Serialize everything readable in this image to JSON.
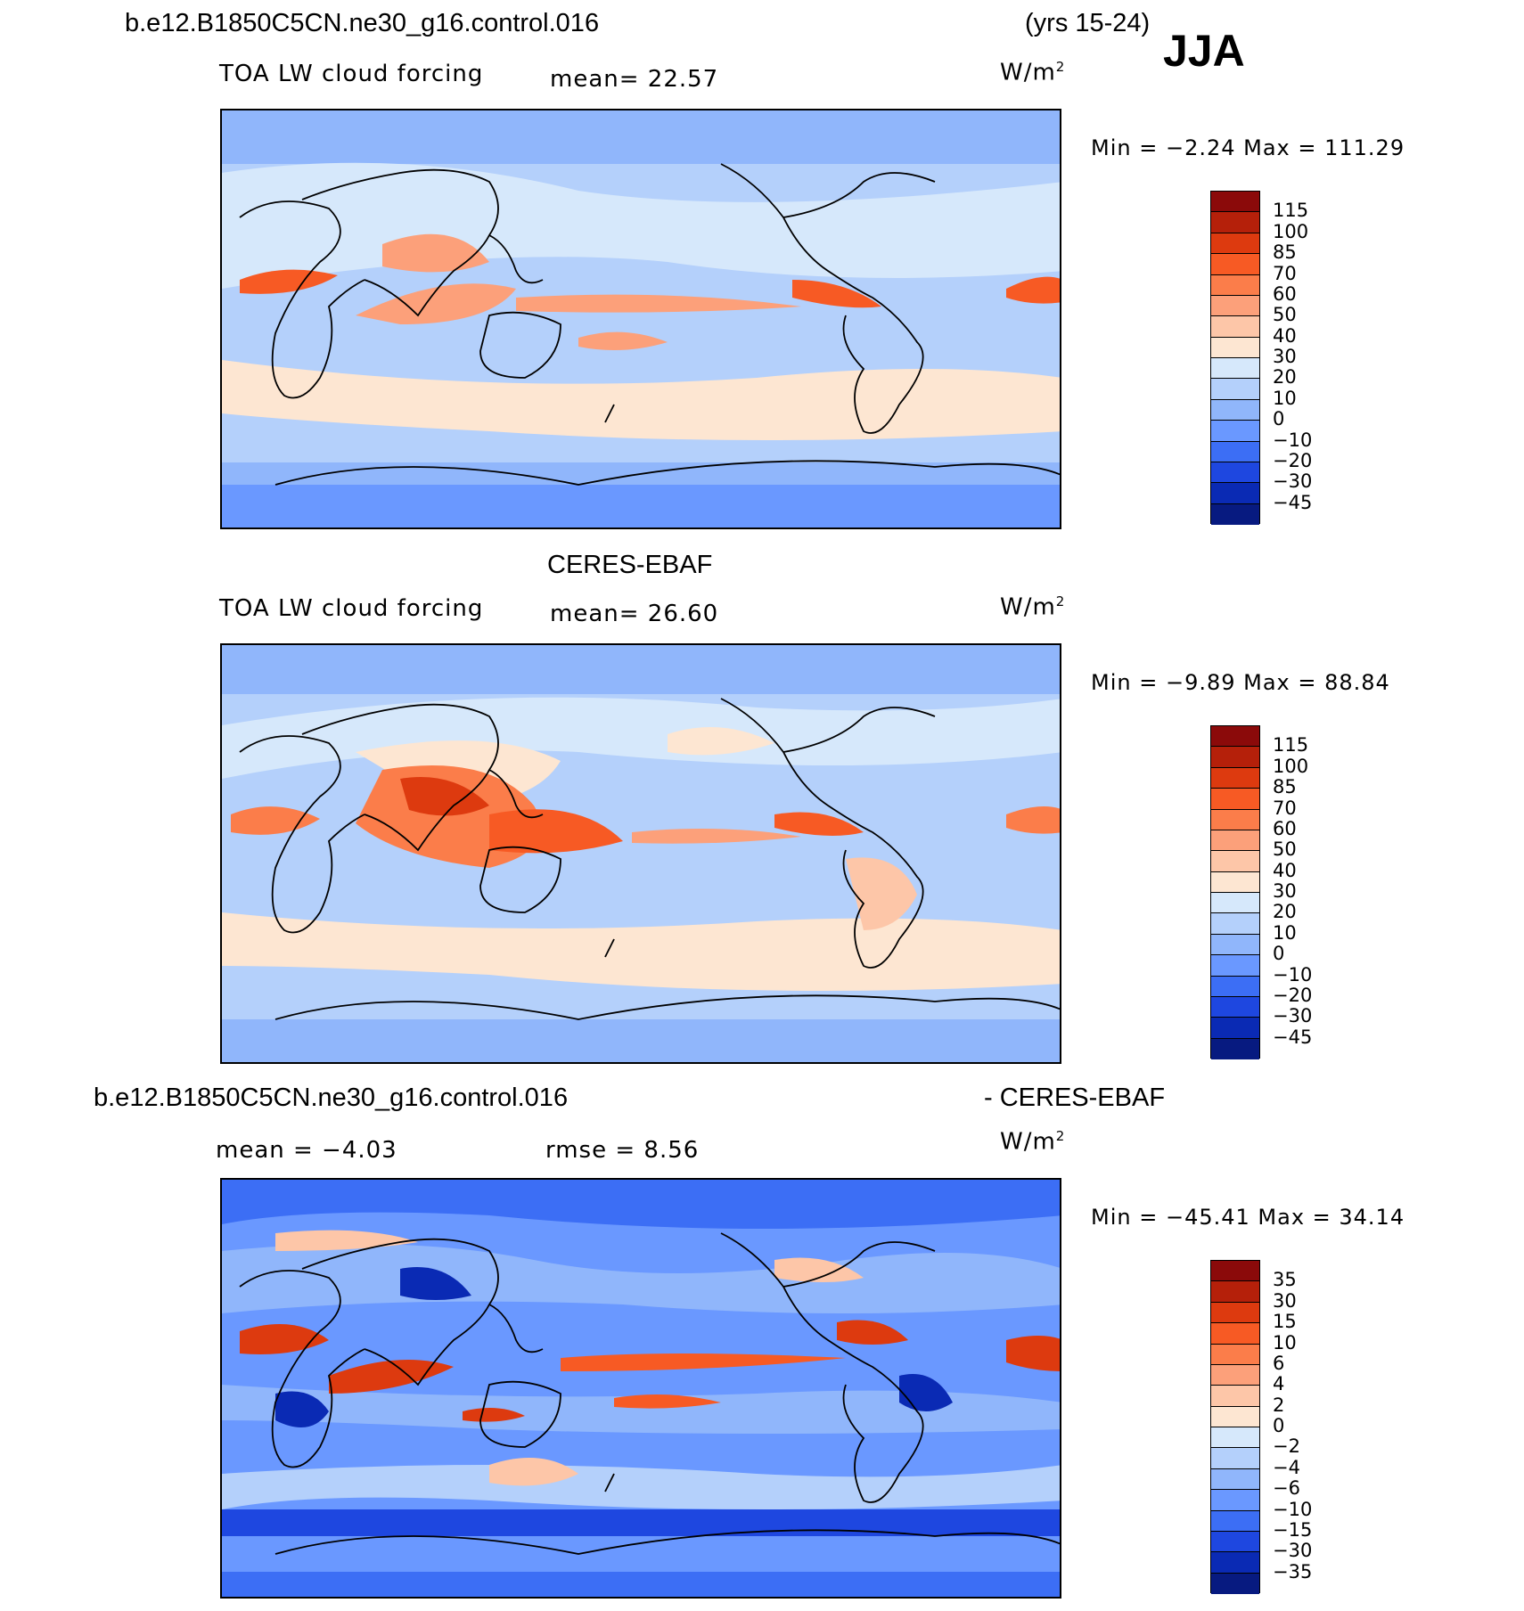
{
  "header": {
    "case_name": "b.e12.B1850C5CN.ne30_g16.control.016",
    "years": "(yrs 15-24)",
    "season": "JJA"
  },
  "panels": [
    {
      "title": "",
      "field": "TOA LW cloud forcing",
      "stat_text": "mean=  22.57",
      "units": "W/m",
      "minmax": "Min =  −2.24 Max = 111.29",
      "colorbar_labels": [
        "115",
        "100",
        "85",
        "70",
        "60",
        "50",
        "40",
        "30",
        "20",
        "10",
        "0",
        "−10",
        "−20",
        "−30",
        "−45"
      ]
    },
    {
      "title": "CERES-EBAF",
      "field": "TOA LW cloud forcing",
      "stat_text": "mean=  26.60",
      "units": "W/m",
      "minmax": "Min =  −9.89 Max =  88.84",
      "colorbar_labels": [
        "115",
        "100",
        "85",
        "70",
        "60",
        "50",
        "40",
        "30",
        "20",
        "10",
        "0",
        "−10",
        "−20",
        "−30",
        "−45"
      ]
    },
    {
      "title_left": "b.e12.B1850C5CN.ne30_g16.control.016",
      "title_right": "- CERES-EBAF",
      "stat_text": "mean =  −4.03",
      "stat_text2": "rmse =   8.56",
      "units": "W/m",
      "minmax": "Min = −45.41 Max =  34.14",
      "colorbar_labels": [
        "35",
        "30",
        "15",
        "10",
        "6",
        "4",
        "2",
        "0",
        "−2",
        "−4",
        "−6",
        "−10",
        "−15",
        "−30",
        "−35"
      ]
    }
  ],
  "colors": {
    "abs_scale": [
      "#8b0a0a",
      "#b5200a",
      "#dd3a0f",
      "#f75a24",
      "#fb7d4a",
      "#fca07a",
      "#fdc6a8",
      "#fde6d2",
      "#d6e8fb",
      "#b4d0fb",
      "#90b6fb",
      "#6a98ff",
      "#3c6ef5",
      "#1e47e0",
      "#0a2ab4",
      "#071a80"
    ],
    "diff_scale": [
      "#8b0a0a",
      "#b5200a",
      "#dd3a0f",
      "#f75a24",
      "#fb7d4a",
      "#fca07a",
      "#fdc6a8",
      "#fde6d2",
      "#d6e8fb",
      "#b4d0fb",
      "#90b6fb",
      "#6a98ff",
      "#3c6ef5",
      "#1e47e0",
      "#0a2ab4",
      "#071a80"
    ]
  }
}
